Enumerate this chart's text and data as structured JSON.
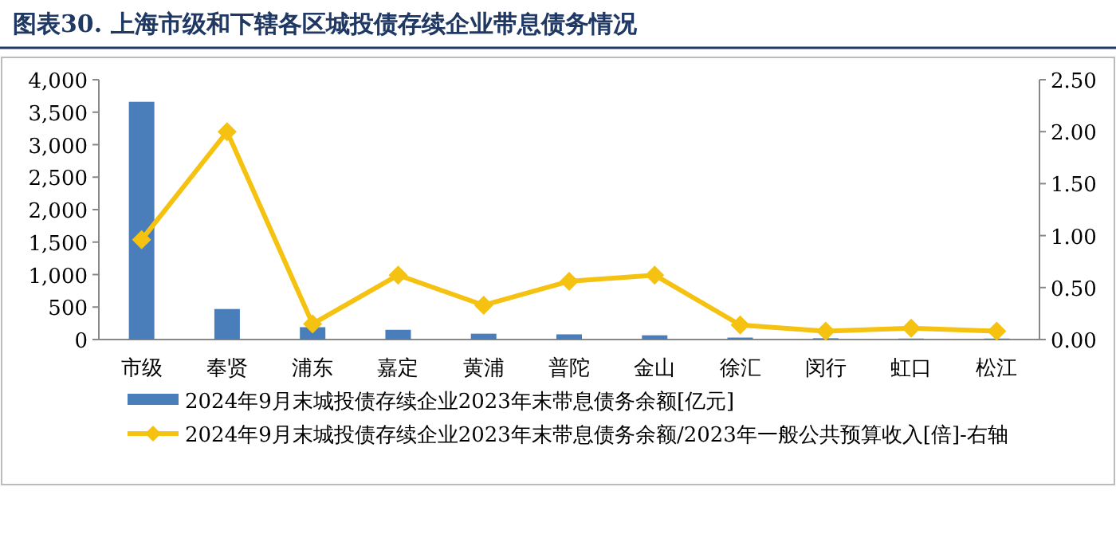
{
  "chart_data": {
    "type": "bar",
    "title": "图表30.  上海市级和下辖各区城投债存续企业带息债务情况",
    "categories": [
      "市级",
      "奉贤",
      "浦东",
      "嘉定",
      "黄浦",
      "普陀",
      "金山",
      "徐汇",
      "闵行",
      "虹口",
      "松江"
    ],
    "series": [
      {
        "name": "2024年9月末城投债存续企业2023年末带息债务余额[亿元]",
        "color": "#4a7ebb",
        "values": [
          3660,
          470,
          190,
          150,
          90,
          80,
          65,
          30,
          20,
          15,
          15
        ]
      },
      {
        "name": "2024年9月末城投债存续企业2023年末带息债务余额/2023年一般公共预算收入[倍]-右轴",
        "type": "line",
        "axis": "y2",
        "color": "#f5c211",
        "marker": "diamond",
        "values": [
          0.96,
          2.0,
          0.15,
          0.62,
          0.33,
          0.56,
          0.62,
          0.14,
          0.08,
          0.11,
          0.08
        ]
      }
    ],
    "ylim": [
      0,
      4000
    ],
    "yticks": [
      {
        "value": 0,
        "label": "0"
      },
      {
        "value": 500,
        "label": "500"
      },
      {
        "value": 1000,
        "label": "1,000"
      },
      {
        "value": 1500,
        "label": "1,500"
      },
      {
        "value": 2000,
        "label": "2,000"
      },
      {
        "value": 2500,
        "label": "2,500"
      },
      {
        "value": 3000,
        "label": "3,000"
      },
      {
        "value": 3500,
        "label": "3,500"
      },
      {
        "value": 4000,
        "label": "4,000"
      }
    ],
    "y2lim": [
      0,
      2.5
    ],
    "y2ticks": [
      {
        "value": 0,
        "label": "0.00"
      },
      {
        "value": 0.5,
        "label": "0.50"
      },
      {
        "value": 1,
        "label": "1.00"
      },
      {
        "value": 1.5,
        "label": "1.50"
      },
      {
        "value": 2,
        "label": "2.00"
      },
      {
        "value": 2.5,
        "label": "2.50"
      }
    ],
    "legend": "bottom",
    "grid": false
  }
}
